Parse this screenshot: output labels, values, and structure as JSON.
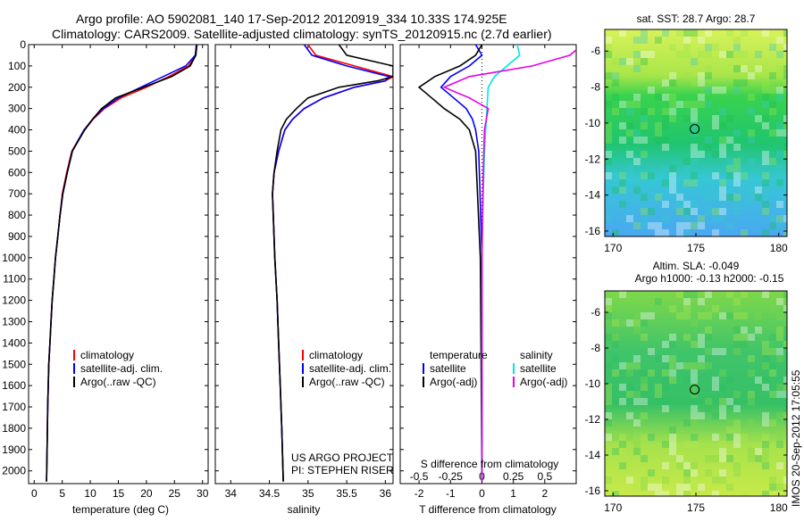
{
  "header": {
    "line1": "Argo profile: AO 5902081_140 17-Sep-2012 20120919_334 10.33S 174.925E",
    "line2": "Climatology: CARS2009. Satellite-adjusted climatology: synTS_20120915.nc (2.7d earlier)"
  },
  "side_label": "IMOS 20-Sep-2012 17:05:55",
  "colors": {
    "climatology": "#ff0000",
    "satellite": "#0000ff",
    "argo": "#000000",
    "salinity_satellite": "#00e6e6",
    "salinity_argo": "#e600e6"
  },
  "chart_data": [
    {
      "id": "temperature",
      "type": "line",
      "xlabel": "temperature (deg C)",
      "ylabel": "",
      "xlim": [
        -1,
        31
      ],
      "xticks": [
        0,
        5,
        10,
        15,
        20,
        25,
        30
      ],
      "ylim": [
        2060,
        0
      ],
      "yticks": [
        0,
        100,
        200,
        300,
        400,
        500,
        600,
        700,
        800,
        900,
        1000,
        1100,
        1200,
        1300,
        1400,
        1500,
        1600,
        1700,
        1800,
        1900,
        2000
      ],
      "legend": [
        "climatology",
        "satellite-adj. clim.",
        "Argo(..raw -QC)"
      ],
      "series": [
        {
          "name": "climatology",
          "color": "#ff0000",
          "x": [
            29.0,
            28.8,
            27.5,
            24.0,
            20.0,
            15.5,
            12.5,
            10.5,
            9.0,
            7.8,
            6.7,
            5.8,
            5.0,
            4.6,
            4.2,
            3.8,
            3.5,
            3.2,
            3.0,
            2.8,
            2.6,
            2.4,
            2.3,
            2.2
          ],
          "y": [
            0,
            50,
            100,
            150,
            200,
            250,
            300,
            350,
            400,
            450,
            500,
            600,
            700,
            800,
            900,
            1000,
            1100,
            1200,
            1300,
            1400,
            1500,
            1700,
            1900,
            2050
          ]
        },
        {
          "name": "satellite-adj. clim.",
          "color": "#0000ff",
          "x": [
            28.9,
            28.7,
            27.0,
            23.0,
            19.0,
            15.0,
            12.3,
            10.4,
            8.9,
            7.8,
            6.8,
            5.9,
            5.1,
            4.6,
            4.2,
            3.8,
            3.5,
            3.2,
            3.0,
            2.8,
            2.6,
            2.4,
            2.3,
            2.2
          ],
          "y": [
            0,
            50,
            100,
            150,
            200,
            250,
            300,
            350,
            400,
            450,
            500,
            600,
            700,
            800,
            900,
            1000,
            1100,
            1200,
            1300,
            1400,
            1500,
            1700,
            1900,
            2050
          ]
        },
        {
          "name": "Argo(..raw -QC)",
          "color": "#000000",
          "x": [
            29.0,
            28.8,
            27.8,
            24.5,
            19.5,
            14.5,
            12.0,
            10.4,
            9.0,
            7.9,
            6.8,
            5.9,
            5.1,
            4.6,
            4.2,
            3.8,
            3.5,
            3.2,
            3.0,
            2.8,
            2.6,
            2.4,
            2.3,
            2.2
          ],
          "y": [
            0,
            50,
            100,
            150,
            200,
            250,
            300,
            350,
            400,
            450,
            500,
            600,
            700,
            800,
            900,
            1000,
            1100,
            1200,
            1300,
            1400,
            1500,
            1700,
            1900,
            2050
          ]
        }
      ]
    },
    {
      "id": "salinity",
      "type": "line",
      "xlabel": "salinity",
      "ylabel": "",
      "xlim": [
        33.8,
        36.1
      ],
      "xticks": [
        34,
        34.5,
        35,
        35.5,
        36
      ],
      "xtick_labels": [
        "34",
        "34.5",
        "35",
        "35.5",
        "36"
      ],
      "ylim": [
        2060,
        0
      ],
      "legend": [
        "climatology",
        "satellite-adj. clim.",
        "Argo(..raw -QC)"
      ],
      "annotation": [
        "US ARGO PROJECT",
        "PI: STEPHEN RISER"
      ],
      "series": [
        {
          "name": "climatology",
          "color": "#ff0000",
          "x": [
            35.0,
            35.1,
            35.6,
            36.1,
            36.0,
            35.6,
            35.2,
            34.95,
            34.8,
            34.7,
            34.62,
            34.56,
            34.54,
            34.55,
            34.57,
            34.6,
            34.62,
            34.64,
            34.66,
            34.68
          ],
          "y": [
            0,
            50,
            100,
            150,
            170,
            200,
            250,
            300,
            350,
            400,
            500,
            600,
            700,
            800,
            1000,
            1200,
            1400,
            1600,
            1800,
            2050
          ]
        },
        {
          "name": "satellite-adj. clim.",
          "color": "#0000ff",
          "x": [
            34.95,
            35.05,
            35.5,
            36.05,
            36.0,
            35.6,
            35.2,
            34.95,
            34.8,
            34.7,
            34.62,
            34.56,
            34.54,
            34.55,
            34.57,
            34.6,
            34.62,
            34.64,
            34.66,
            34.68
          ],
          "y": [
            0,
            50,
            100,
            150,
            170,
            200,
            250,
            300,
            350,
            400,
            500,
            600,
            700,
            800,
            1000,
            1200,
            1400,
            1600,
            1800,
            2050
          ]
        },
        {
          "name": "Argo(..raw -QC)",
          "color": "#000000",
          "x": [
            35.4,
            35.5,
            36.1,
            36.1,
            35.9,
            35.4,
            35.0,
            34.85,
            34.72,
            34.65,
            34.6,
            34.56,
            34.54,
            34.55,
            34.57,
            34.6,
            34.62,
            34.64,
            34.66,
            34.68
          ],
          "y": [
            0,
            50,
            100,
            150,
            170,
            200,
            250,
            300,
            350,
            400,
            500,
            600,
            700,
            800,
            1000,
            1200,
            1400,
            1600,
            1800,
            2050
          ]
        }
      ]
    },
    {
      "id": "difference",
      "type": "line",
      "xlabel": "T difference from climatology",
      "xlabel_top": "S difference from climatology",
      "xlim": [
        -2.6,
        3.0
      ],
      "xticks": [
        -2,
        -1,
        0,
        1,
        2
      ],
      "s_ticks": [
        -0.5,
        -0.25,
        0,
        0.25,
        0.5
      ],
      "s_tick_labels": [
        "-0.5",
        "-0.25",
        "0",
        "0.25",
        "0.5"
      ],
      "ylim": [
        2060,
        0
      ],
      "legend_headers": [
        "temperature",
        "salinity"
      ],
      "legend": [
        "satellite",
        "Argo(-adj)",
        "satellite",
        "Argo(-adj)"
      ],
      "series": [
        {
          "name": "T satellite",
          "color": "#0000ff",
          "x": [
            -0.2,
            0.0,
            -0.4,
            -1.0,
            -1.3,
            -0.9,
            -0.5,
            -0.3,
            -0.2,
            -0.1,
            0.0,
            0.0
          ],
          "y": [
            0,
            50,
            100,
            150,
            200,
            250,
            300,
            350,
            400,
            500,
            1000,
            2050
          ]
        },
        {
          "name": "T Argo(-adj)",
          "color": "#000000",
          "x": [
            0.0,
            -0.2,
            -0.7,
            -1.5,
            -2.0,
            -1.6,
            -1.2,
            -0.7,
            -0.4,
            -0.2,
            -0.05,
            0.0
          ],
          "y": [
            0,
            50,
            100,
            150,
            200,
            250,
            300,
            350,
            400,
            500,
            1000,
            2050
          ]
        },
        {
          "name": "S satellite",
          "color": "#00e6e6",
          "x": [
            0.28,
            0.3,
            0.2,
            0.1,
            0.05,
            0.04,
            0.03,
            0.02,
            0.01,
            0.0,
            0.0
          ],
          "y": [
            0,
            50,
            100,
            150,
            200,
            300,
            400,
            500,
            700,
            1000,
            2050
          ]
        },
        {
          "name": "S Argo(-adj)",
          "color": "#e600e6",
          "x": [
            0.8,
            0.7,
            0.4,
            -0.1,
            -0.3,
            -0.1,
            0.05,
            0.02,
            0.01,
            0.0,
            0.0
          ],
          "y": [
            0,
            50,
            100,
            150,
            200,
            250,
            300,
            400,
            600,
            1000,
            2050
          ]
        }
      ]
    },
    {
      "id": "sst_map",
      "type": "heatmap",
      "title": "sat. SST: 28.7 Argo: 28.7",
      "xticks": [
        170,
        175,
        180
      ],
      "yticks": [
        -6,
        -8,
        -10,
        -12,
        -14,
        -16
      ],
      "xlim": [
        169.5,
        180.5
      ],
      "ylim": [
        -16.3,
        -4.8
      ],
      "marker": {
        "x": 174.925,
        "y": -10.33
      }
    },
    {
      "id": "sla_map",
      "type": "heatmap",
      "title": [
        "Altim. SLA: -0.049",
        "Argo h1000: -0.13 h2000: -0.15"
      ],
      "xticks": [
        170,
        175,
        180
      ],
      "yticks": [
        -6,
        -8,
        -10,
        -12,
        -14,
        -16
      ],
      "xlim": [
        169.5,
        180.5
      ],
      "ylim": [
        -16.3,
        -4.8
      ],
      "marker": {
        "x": 174.925,
        "y": -10.33
      }
    }
  ]
}
